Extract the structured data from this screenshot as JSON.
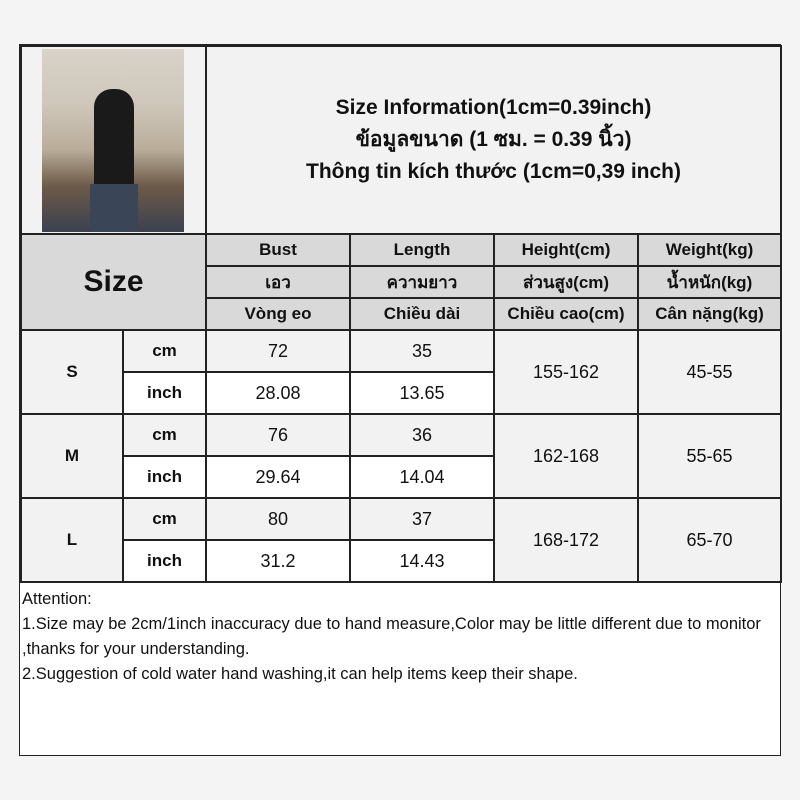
{
  "title_lines": [
    "Size Information(1cm=0.39inch)",
    "ข้อมูลขนาด (1 ซม. = 0.39 นิ้ว)",
    "Thông tin kích thước (1cm=0,39 inch)"
  ],
  "size_label": "Size",
  "headers": [
    [
      "Bust",
      "Length",
      "Height(cm)",
      "Weight(kg)"
    ],
    [
      "เอว",
      "ความยาว",
      "ส่วนสูง(cm)",
      "น้ำหนัก(kg)"
    ],
    [
      "Vòng eo",
      "Chiều dài",
      "Chiều cao(cm)",
      "Cân nặng(kg)"
    ]
  ],
  "units": [
    "cm",
    "inch"
  ],
  "rows": [
    {
      "size": "S",
      "cm": [
        "72",
        "35"
      ],
      "inch": [
        "28.08",
        "13.65"
      ],
      "height": "155-162",
      "weight": "45-55"
    },
    {
      "size": "M",
      "cm": [
        "76",
        "36"
      ],
      "inch": [
        "29.64",
        "14.04"
      ],
      "height": "162-168",
      "weight": "55-65"
    },
    {
      "size": "L",
      "cm": [
        "80",
        "37"
      ],
      "inch": [
        "31.2",
        "14.43"
      ],
      "height": "168-172",
      "weight": "65-70"
    }
  ],
  "notes": [
    "Attention:",
    "1.Size may be 2cm/1inch inaccuracy due to hand measure,Color may be little different due to monitor ,thanks for your understanding.",
    "2.Suggestion of cold water hand washing,it can help items keep their shape."
  ]
}
